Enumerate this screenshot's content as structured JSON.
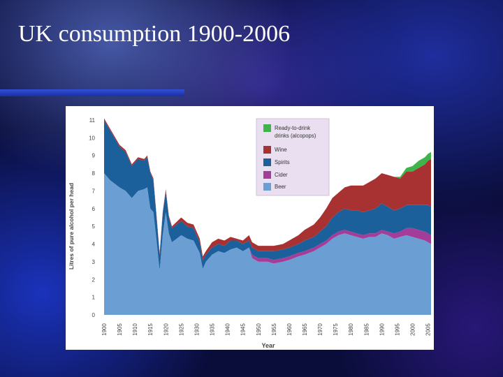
{
  "slide": {
    "title": "UK consumption 1900-2006"
  },
  "colors": {
    "beer": "#6b9fd4",
    "cider": "#a43c9a",
    "spirits": "#1b5f9b",
    "wine": "#a83232",
    "rtd": "#3fb44a",
    "legend_bg": "#e9dff0"
  },
  "chart_data": {
    "type": "area",
    "stacked": true,
    "title": "",
    "xlabel": "Year",
    "ylabel": "Litres of pure alcohol per head",
    "xlim": [
      1900,
      2006
    ],
    "ylim": [
      0,
      11
    ],
    "yticks": [
      "0",
      "1",
      "2",
      "3",
      "4",
      "5",
      "6",
      "7",
      "8",
      "9",
      "10",
      "11"
    ],
    "xticks": [
      "1900",
      "1905",
      "1910",
      "1915",
      "1920",
      "1925",
      "1930",
      "1935",
      "1940",
      "1945",
      "1950",
      "1955",
      "1960",
      "1965",
      "1970",
      "1975",
      "1980",
      "1985",
      "1990",
      "1995",
      "2000",
      "2005"
    ],
    "legend": [
      "Ready-to-drink drinks (alcopops)",
      "Wine",
      "Spirits",
      "Cider",
      "Beer"
    ],
    "x": [
      1900,
      1902,
      1905,
      1907,
      1909,
      1911,
      1913,
      1914,
      1915,
      1916,
      1917,
      1918,
      1919,
      1920,
      1921,
      1922,
      1925,
      1927,
      1929,
      1931,
      1932,
      1933,
      1935,
      1937,
      1939,
      1941,
      1943,
      1945,
      1947,
      1948,
      1950,
      1953,
      1955,
      1958,
      1960,
      1963,
      1965,
      1968,
      1970,
      1972,
      1974,
      1976,
      1978,
      1980,
      1982,
      1984,
      1986,
      1988,
      1990,
      1992,
      1994,
      1996,
      1998,
      2000,
      2002,
      2004,
      2005,
      2006
    ],
    "series": [
      {
        "name": "Beer",
        "values": [
          8.0,
          7.6,
          7.2,
          7.0,
          6.6,
          7.0,
          7.1,
          7.2,
          6.0,
          5.8,
          4.2,
          2.5,
          4.5,
          5.8,
          4.6,
          4.1,
          4.5,
          4.3,
          4.2,
          3.5,
          2.6,
          3.0,
          3.4,
          3.6,
          3.5,
          3.7,
          3.8,
          3.6,
          3.8,
          3.2,
          3.0,
          3.0,
          2.9,
          3.0,
          3.1,
          3.3,
          3.4,
          3.6,
          3.8,
          4.0,
          4.3,
          4.5,
          4.6,
          4.5,
          4.4,
          4.3,
          4.4,
          4.4,
          4.6,
          4.5,
          4.3,
          4.4,
          4.5,
          4.4,
          4.3,
          4.2,
          4.1,
          4.0
        ]
      },
      {
        "name": "Cider",
        "values": [
          0.0,
          0.0,
          0.0,
          0.0,
          0.0,
          0.0,
          0.0,
          0.0,
          0.0,
          0.0,
          0.0,
          0.0,
          0.0,
          0.0,
          0.0,
          0.0,
          0.0,
          0.0,
          0.0,
          0.0,
          0.0,
          0.0,
          0.0,
          0.0,
          0.0,
          0.0,
          0.0,
          0.0,
          0.0,
          0.2,
          0.2,
          0.2,
          0.2,
          0.2,
          0.2,
          0.2,
          0.2,
          0.2,
          0.2,
          0.2,
          0.2,
          0.2,
          0.2,
          0.2,
          0.2,
          0.2,
          0.2,
          0.2,
          0.2,
          0.2,
          0.3,
          0.3,
          0.4,
          0.5,
          0.5,
          0.5,
          0.5,
          0.5
        ]
      },
      {
        "name": "Spirits",
        "values": [
          3.0,
          2.8,
          2.3,
          2.2,
          1.8,
          1.8,
          1.6,
          1.7,
          2.0,
          1.8,
          1.3,
          0.9,
          1.2,
          1.2,
          0.9,
          0.8,
          0.8,
          0.7,
          0.7,
          0.6,
          0.5,
          0.4,
          0.4,
          0.4,
          0.4,
          0.5,
          0.4,
          0.4,
          0.4,
          0.4,
          0.4,
          0.4,
          0.5,
          0.5,
          0.5,
          0.5,
          0.6,
          0.6,
          0.7,
          0.8,
          1.0,
          1.1,
          1.2,
          1.2,
          1.3,
          1.3,
          1.3,
          1.4,
          1.5,
          1.4,
          1.3,
          1.3,
          1.3,
          1.3,
          1.4,
          1.5,
          1.6,
          1.6
        ]
      },
      {
        "name": "Wine",
        "values": [
          0.1,
          0.1,
          0.1,
          0.1,
          0.1,
          0.1,
          0.1,
          0.1,
          0.1,
          0.1,
          0.1,
          0.1,
          0.1,
          0.1,
          0.1,
          0.1,
          0.2,
          0.2,
          0.2,
          0.2,
          0.2,
          0.2,
          0.3,
          0.3,
          0.3,
          0.2,
          0.1,
          0.2,
          0.3,
          0.3,
          0.3,
          0.3,
          0.3,
          0.3,
          0.4,
          0.5,
          0.6,
          0.7,
          0.8,
          1.0,
          1.1,
          1.1,
          1.2,
          1.4,
          1.4,
          1.5,
          1.6,
          1.7,
          1.7,
          1.8,
          1.9,
          1.7,
          1.9,
          1.9,
          2.1,
          2.3,
          2.5,
          2.7
        ]
      },
      {
        "name": "Ready-to-drink drinks (alcopops)",
        "values": [
          0.0,
          0.0,
          0.0,
          0.0,
          0.0,
          0.0,
          0.0,
          0.0,
          0.0,
          0.0,
          0.0,
          0.0,
          0.0,
          0.0,
          0.0,
          0.0,
          0.0,
          0.0,
          0.0,
          0.0,
          0.0,
          0.0,
          0.0,
          0.0,
          0.0,
          0.0,
          0.0,
          0.0,
          0.0,
          0.0,
          0.0,
          0.0,
          0.0,
          0.0,
          0.0,
          0.0,
          0.0,
          0.0,
          0.0,
          0.0,
          0.0,
          0.0,
          0.0,
          0.0,
          0.0,
          0.0,
          0.0,
          0.0,
          0.0,
          0.0,
          0.0,
          0.1,
          0.2,
          0.3,
          0.4,
          0.4,
          0.4,
          0.4
        ]
      }
    ]
  }
}
